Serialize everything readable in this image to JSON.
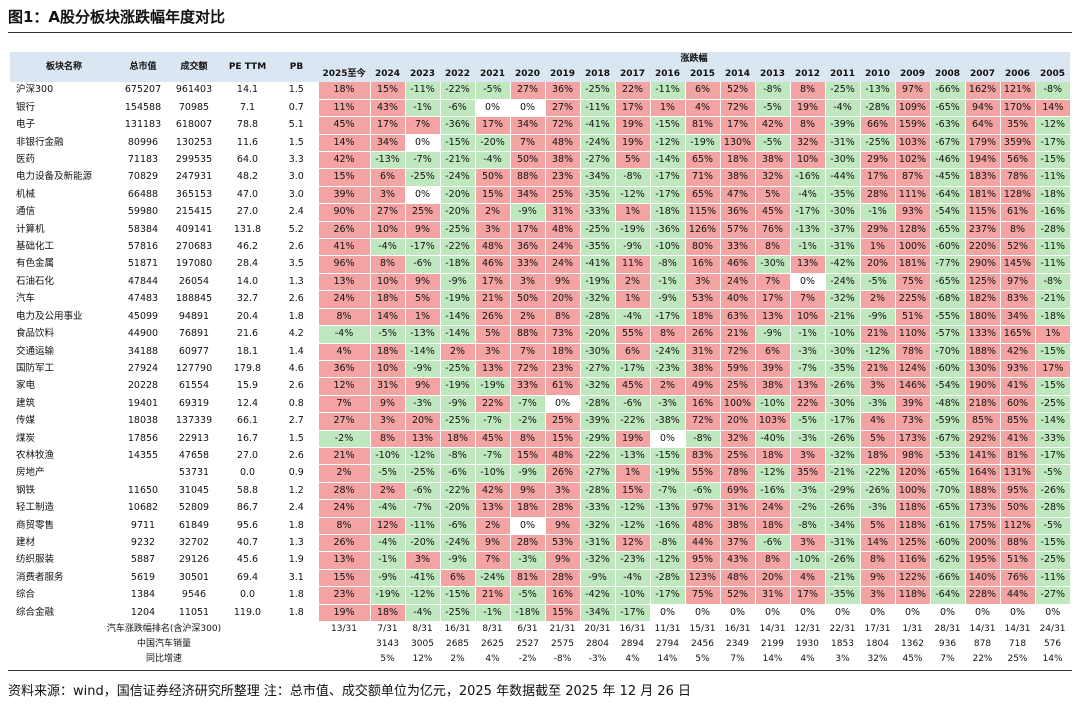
{
  "header": {
    "title": "图1：A股分板块涨跌幅年度对比"
  },
  "table": {
    "columns": [
      "板块名称",
      "总市值",
      "成交额",
      "PE TTM",
      "PB"
    ],
    "group": "涨跌幅",
    "years": [
      "2025至今",
      "2024",
      "2023",
      "2022",
      "2021",
      "2020",
      "2019",
      "2018",
      "2017",
      "2016",
      "2015",
      "2014",
      "2013",
      "2012",
      "2011",
      "2010",
      "2009",
      "2008",
      "2007",
      "2006",
      "2005"
    ],
    "rows": [
      [
        "沪深300",
        "675207",
        "961403",
        "14.1",
        "1.5",
        "18%",
        "15%",
        "-11%",
        "-22%",
        "-5%",
        "27%",
        "36%",
        "-25%",
        "22%",
        "-11%",
        "6%",
        "52%",
        "-8%",
        "8%",
        "-25%",
        "-13%",
        "97%",
        "-66%",
        "162%",
        "121%",
        "-8%"
      ],
      [
        "银行",
        "154588",
        "70985",
        "7.1",
        "0.7",
        "11%",
        "43%",
        "-1%",
        "-6%",
        "0%",
        "0%",
        "27%",
        "-11%",
        "17%",
        "1%",
        "4%",
        "72%",
        "-5%",
        "19%",
        "-4%",
        "-28%",
        "109%",
        "-65%",
        "94%",
        "170%",
        "14%"
      ],
      [
        "电子",
        "131183",
        "618007",
        "78.8",
        "5.1",
        "45%",
        "17%",
        "7%",
        "-36%",
        "17%",
        "34%",
        "72%",
        "-41%",
        "19%",
        "-15%",
        "81%",
        "17%",
        "42%",
        "8%",
        "-39%",
        "66%",
        "159%",
        "-63%",
        "64%",
        "35%",
        "-12%"
      ],
      [
        "非银行金融",
        "80996",
        "130253",
        "11.6",
        "1.5",
        "14%",
        "34%",
        "0%",
        "-15%",
        "-20%",
        "7%",
        "48%",
        "-24%",
        "19%",
        "-12%",
        "-19%",
        "130%",
        "-5%",
        "32%",
        "-31%",
        "-25%",
        "103%",
        "-67%",
        "179%",
        "359%",
        "-17%"
      ],
      [
        "医药",
        "71183",
        "299535",
        "64.0",
        "3.3",
        "42%",
        "-13%",
        "-7%",
        "-21%",
        "-4%",
        "50%",
        "38%",
        "-27%",
        "5%",
        "-14%",
        "65%",
        "18%",
        "38%",
        "10%",
        "-30%",
        "29%",
        "102%",
        "-46%",
        "194%",
        "56%",
        "-15%"
      ],
      [
        "电力设备及新能源",
        "70829",
        "247931",
        "48.2",
        "3.0",
        "15%",
        "6%",
        "-25%",
        "-24%",
        "50%",
        "88%",
        "23%",
        "-34%",
        "-8%",
        "-17%",
        "71%",
        "38%",
        "32%",
        "-16%",
        "-44%",
        "17%",
        "87%",
        "-45%",
        "183%",
        "78%",
        "-11%"
      ],
      [
        "机械",
        "66488",
        "365153",
        "47.0",
        "3.0",
        "39%",
        "3%",
        "0%",
        "-20%",
        "15%",
        "34%",
        "25%",
        "-35%",
        "-12%",
        "-17%",
        "65%",
        "47%",
        "5%",
        "-4%",
        "-35%",
        "28%",
        "111%",
        "-64%",
        "181%",
        "128%",
        "-18%"
      ],
      [
        "通信",
        "59980",
        "215415",
        "27.0",
        "2.4",
        "90%",
        "27%",
        "25%",
        "-20%",
        "2%",
        "-9%",
        "31%",
        "-33%",
        "1%",
        "-18%",
        "115%",
        "36%",
        "45%",
        "-17%",
        "-30%",
        "-1%",
        "93%",
        "-54%",
        "115%",
        "61%",
        "-16%"
      ],
      [
        "计算机",
        "58384",
        "409141",
        "131.8",
        "5.2",
        "26%",
        "10%",
        "9%",
        "-25%",
        "3%",
        "17%",
        "48%",
        "-25%",
        "-19%",
        "-36%",
        "126%",
        "57%",
        "76%",
        "-13%",
        "-37%",
        "29%",
        "128%",
        "-65%",
        "237%",
        "8%",
        "-28%"
      ],
      [
        "基础化工",
        "57816",
        "270683",
        "46.2",
        "2.6",
        "41%",
        "-4%",
        "-17%",
        "-22%",
        "48%",
        "36%",
        "24%",
        "-35%",
        "-9%",
        "-10%",
        "80%",
        "33%",
        "8%",
        "-1%",
        "-31%",
        "1%",
        "100%",
        "-60%",
        "220%",
        "52%",
        "-11%"
      ],
      [
        "有色金属",
        "51871",
        "197080",
        "28.4",
        "3.5",
        "96%",
        "8%",
        "-6%",
        "-18%",
        "46%",
        "33%",
        "24%",
        "-41%",
        "11%",
        "-8%",
        "16%",
        "46%",
        "-30%",
        "13%",
        "-42%",
        "20%",
        "181%",
        "-77%",
        "290%",
        "145%",
        "-11%"
      ],
      [
        "石油石化",
        "47844",
        "26054",
        "14.0",
        "1.3",
        "13%",
        "10%",
        "9%",
        "-9%",
        "17%",
        "3%",
        "9%",
        "-19%",
        "2%",
        "-1%",
        "3%",
        "24%",
        "7%",
        "0%",
        "-24%",
        "-5%",
        "75%",
        "-65%",
        "125%",
        "97%",
        "-8%"
      ],
      [
        "汽车",
        "47483",
        "188845",
        "32.7",
        "2.6",
        "24%",
        "18%",
        "5%",
        "-19%",
        "21%",
        "50%",
        "20%",
        "-32%",
        "1%",
        "-9%",
        "53%",
        "40%",
        "17%",
        "7%",
        "-32%",
        "2%",
        "225%",
        "-68%",
        "182%",
        "83%",
        "-21%"
      ],
      [
        "电力及公用事业",
        "45099",
        "94891",
        "20.4",
        "1.8",
        "8%",
        "14%",
        "1%",
        "-14%",
        "26%",
        "2%",
        "8%",
        "-28%",
        "-4%",
        "-17%",
        "18%",
        "63%",
        "13%",
        "10%",
        "-21%",
        "-9%",
        "51%",
        "-55%",
        "180%",
        "34%",
        "-18%"
      ],
      [
        "食品饮料",
        "44900",
        "76891",
        "21.6",
        "4.2",
        "-4%",
        "-5%",
        "-13%",
        "-14%",
        "5%",
        "88%",
        "73%",
        "-20%",
        "55%",
        "8%",
        "26%",
        "21%",
        "-9%",
        "-1%",
        "-10%",
        "21%",
        "110%",
        "-57%",
        "133%",
        "165%",
        "1%"
      ],
      [
        "交通运输",
        "34188",
        "60977",
        "18.1",
        "1.4",
        "4%",
        "18%",
        "-14%",
        "2%",
        "3%",
        "7%",
        "18%",
        "-30%",
        "6%",
        "-24%",
        "31%",
        "72%",
        "6%",
        "-3%",
        "-30%",
        "-12%",
        "78%",
        "-70%",
        "188%",
        "42%",
        "-15%"
      ],
      [
        "国防军工",
        "27924",
        "127790",
        "179.8",
        "4.6",
        "36%",
        "10%",
        "-9%",
        "-25%",
        "13%",
        "72%",
        "23%",
        "-27%",
        "-17%",
        "-23%",
        "38%",
        "59%",
        "39%",
        "-7%",
        "-35%",
        "21%",
        "124%",
        "-60%",
        "130%",
        "93%",
        "17%"
      ],
      [
        "家电",
        "20228",
        "61554",
        "15.9",
        "2.6",
        "12%",
        "31%",
        "9%",
        "-19%",
        "-19%",
        "33%",
        "61%",
        "-32%",
        "45%",
        "2%",
        "49%",
        "25%",
        "38%",
        "13%",
        "-26%",
        "3%",
        "146%",
        "-54%",
        "190%",
        "41%",
        "-15%"
      ],
      [
        "建筑",
        "19401",
        "69319",
        "12.4",
        "0.8",
        "7%",
        "9%",
        "-3%",
        "-9%",
        "22%",
        "-7%",
        "0%",
        "-28%",
        "-6%",
        "-3%",
        "16%",
        "100%",
        "-10%",
        "22%",
        "-30%",
        "-3%",
        "39%",
        "-48%",
        "218%",
        "60%",
        "-25%"
      ],
      [
        "传媒",
        "18038",
        "137339",
        "66.1",
        "2.7",
        "27%",
        "3%",
        "20%",
        "-25%",
        "-7%",
        "-2%",
        "25%",
        "-39%",
        "-22%",
        "-38%",
        "72%",
        "20%",
        "103%",
        "-5%",
        "-17%",
        "4%",
        "73%",
        "-59%",
        "85%",
        "85%",
        "-14%"
      ],
      [
        "煤炭",
        "17856",
        "22913",
        "16.7",
        "1.5",
        "-2%",
        "8%",
        "13%",
        "18%",
        "45%",
        "8%",
        "15%",
        "-29%",
        "19%",
        "0%",
        "-8%",
        "32%",
        "-40%",
        "-3%",
        "-26%",
        "5%",
        "173%",
        "-67%",
        "292%",
        "41%",
        "-33%"
      ],
      [
        "农林牧渔",
        "14355",
        "47658",
        "27.0",
        "2.6",
        "21%",
        "-10%",
        "-12%",
        "-8%",
        "-7%",
        "15%",
        "48%",
        "-22%",
        "-13%",
        "-15%",
        "83%",
        "25%",
        "18%",
        "3%",
        "-32%",
        "18%",
        "98%",
        "-53%",
        "141%",
        "81%",
        "-17%"
      ],
      [
        "房地产",
        null,
        "53731",
        "0.0",
        "0.9",
        "2%",
        "-5%",
        "-25%",
        "-6%",
        "-10%",
        "-9%",
        "26%",
        "-27%",
        "1%",
        "-19%",
        "55%",
        "78%",
        "-12%",
        "35%",
        "-21%",
        "-22%",
        "120%",
        "-65%",
        "164%",
        "131%",
        "-5%"
      ],
      [
        "钢铁",
        "11650",
        "31045",
        "58.8",
        "1.2",
        "28%",
        "2%",
        "-6%",
        "-22%",
        "42%",
        "9%",
        "3%",
        "-28%",
        "15%",
        "-7%",
        "-6%",
        "69%",
        "-16%",
        "-3%",
        "-29%",
        "-26%",
        "100%",
        "-70%",
        "188%",
        "95%",
        "-26%"
      ],
      [
        "轻工制造",
        "10682",
        "52809",
        "86.7",
        "2.4",
        "24%",
        "-4%",
        "-7%",
        "-20%",
        "13%",
        "18%",
        "28%",
        "-33%",
        "-12%",
        "-13%",
        "97%",
        "31%",
        "24%",
        "-2%",
        "-26%",
        "-3%",
        "118%",
        "-65%",
        "173%",
        "50%",
        "-28%"
      ],
      [
        "商贸零售",
        "9711",
        "61849",
        "95.6",
        "1.8",
        "8%",
        "12%",
        "-11%",
        "-6%",
        "2%",
        "0%",
        "9%",
        "-32%",
        "-12%",
        "-16%",
        "48%",
        "38%",
        "18%",
        "-8%",
        "-34%",
        "5%",
        "118%",
        "-61%",
        "175%",
        "112%",
        "-5%"
      ],
      [
        "建材",
        "9232",
        "32702",
        "40.7",
        "1.3",
        "26%",
        "-4%",
        "-20%",
        "-24%",
        "9%",
        "28%",
        "53%",
        "-31%",
        "12%",
        "-8%",
        "44%",
        "37%",
        "-6%",
        "3%",
        "-31%",
        "14%",
        "125%",
        "-60%",
        "200%",
        "88%",
        "-15%"
      ],
      [
        "纺织服装",
        "5887",
        "29126",
        "45.6",
        "1.9",
        "13%",
        "-1%",
        "3%",
        "-9%",
        "7%",
        "-3%",
        "9%",
        "-32%",
        "-23%",
        "-12%",
        "95%",
        "43%",
        "8%",
        "-10%",
        "-26%",
        "8%",
        "116%",
        "-62%",
        "195%",
        "51%",
        "-25%"
      ],
      [
        "消费者服务",
        "5619",
        "30501",
        "69.4",
        "3.1",
        "15%",
        "-9%",
        "-41%",
        "6%",
        "-24%",
        "81%",
        "28%",
        "-9%",
        "-4%",
        "-28%",
        "123%",
        "48%",
        "20%",
        "4%",
        "-21%",
        "9%",
        "122%",
        "-66%",
        "140%",
        "76%",
        "-11%"
      ],
      [
        "综合",
        "1384",
        "9546",
        "0.0",
        "1.8",
        "23%",
        "-19%",
        "-12%",
        "-15%",
        "21%",
        "-5%",
        "16%",
        "-42%",
        "-10%",
        "-17%",
        "75%",
        "52%",
        "31%",
        "17%",
        "-35%",
        "3%",
        "118%",
        "-64%",
        "228%",
        "44%",
        "-27%"
      ],
      [
        "综合金融",
        "1204",
        "11051",
        "119.0",
        "1.8",
        "19%",
        "18%",
        "-4%",
        "-25%",
        "-1%",
        "-18%",
        "15%",
        "-34%",
        "-17%",
        "0%",
        "0%",
        "0%",
        "0%",
        "0%",
        "0%",
        "0%",
        "0%",
        "0%",
        "0%",
        "0%",
        "0%"
      ]
    ],
    "footer_rows": [
      [
        "汽车涨跌幅排名(含沪深300)",
        "13/31",
        "7/31",
        "8/31",
        "16/31",
        "8/31",
        "6/31",
        "21/31",
        "20/31",
        "16/31",
        "11/31",
        "15/31",
        "16/31",
        "14/31",
        "12/31",
        "22/31",
        "17/31",
        "1/31",
        "28/31",
        "14/31",
        "14/31",
        "24/31"
      ],
      [
        "中国汽车销量",
        null,
        "3143",
        "3005",
        "2685",
        "2625",
        "2527",
        "2575",
        "2804",
        "2894",
        "2794",
        "2456",
        "2349",
        "2199",
        "1930",
        "1853",
        "1804",
        "1362",
        "936",
        "878",
        "718",
        "576"
      ],
      [
        "同比增速",
        null,
        "5%",
        "12%",
        "2%",
        "4%",
        "-2%",
        "-8%",
        "-3%",
        "4%",
        "14%",
        "5%",
        "7%",
        "14%",
        "4%",
        "3%",
        "32%",
        "45%",
        "7%",
        "22%",
        "25%",
        "14%"
      ]
    ]
  },
  "source": "资料来源：wind，国信证券经济研究所整理 注：总市值、成交额单位为亿元，2025 年数据截至 2025 年 12 月 26 日"
}
